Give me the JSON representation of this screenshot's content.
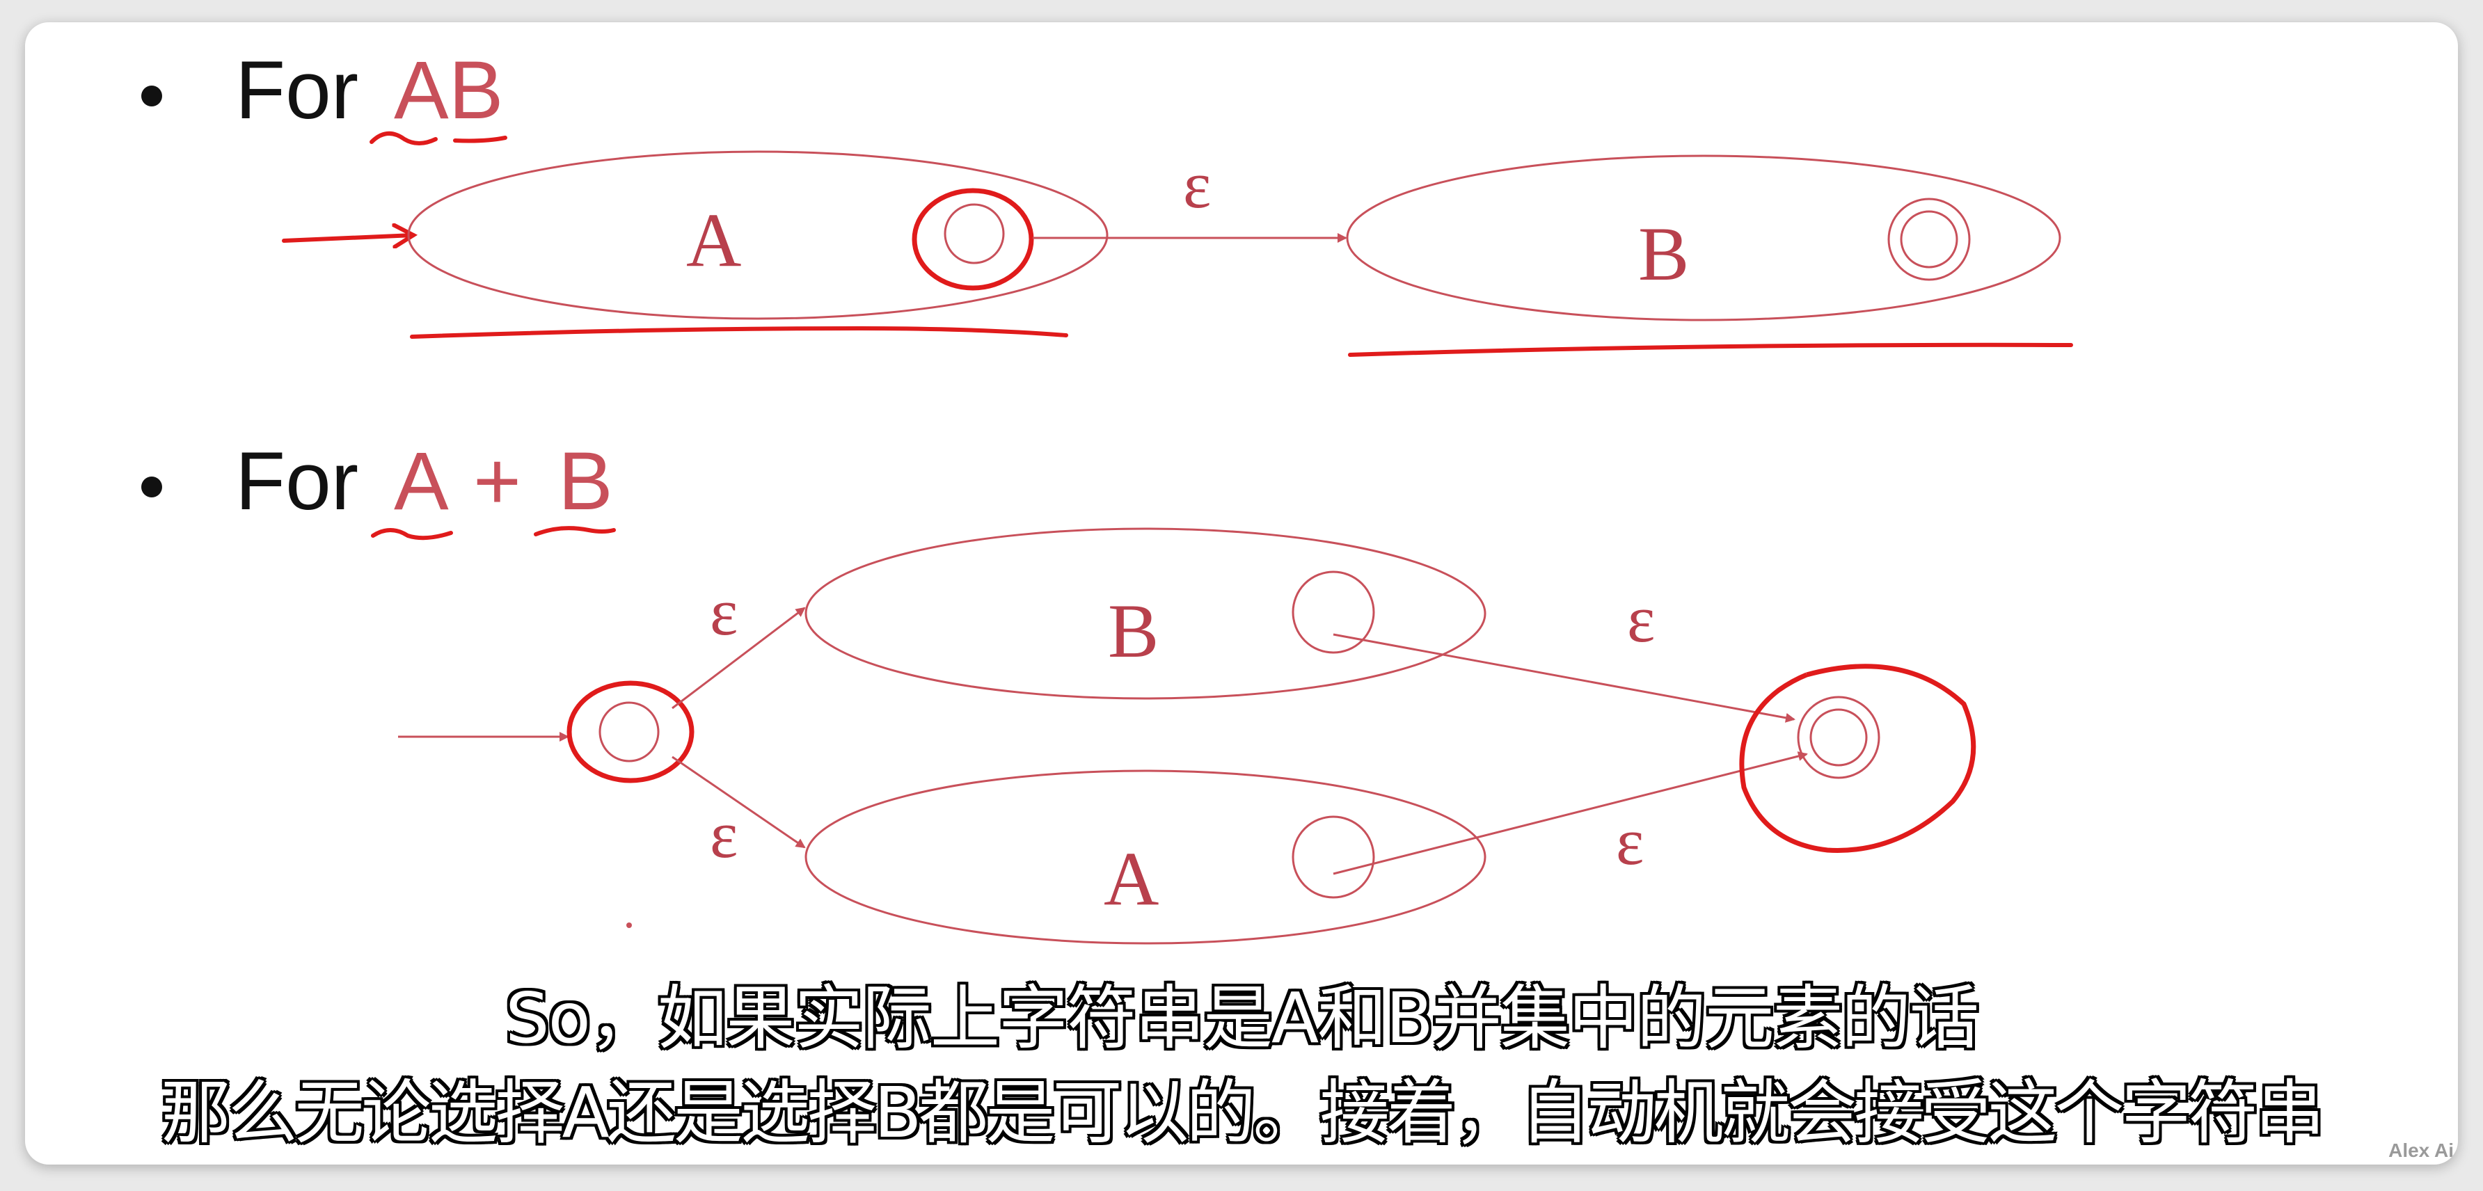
{
  "section_ab": {
    "prefix": "For",
    "expr": "AB",
    "epsilon": "ε",
    "label_a": "A",
    "label_b": "B"
  },
  "section_union": {
    "prefix": "For",
    "term_a": "A",
    "plus": "+",
    "term_b": "B",
    "epsilon_top_in": "ε",
    "epsilon_bottom_in": "ε",
    "epsilon_top_out": "ε",
    "epsilon_bottom_out": "ε",
    "label_b": "B",
    "label_a": "A"
  },
  "subtitles": {
    "line1": "So，如果实际上字符串是A和B并集中的元素的话",
    "line2": "那么无论选择A还是选择B都是可以的。接着，自动机就会接受这个字符串"
  },
  "watermark": "Alex Ai",
  "colors": {
    "pen_red": "#e01b1b",
    "diagram_pink": "#c8505a"
  }
}
